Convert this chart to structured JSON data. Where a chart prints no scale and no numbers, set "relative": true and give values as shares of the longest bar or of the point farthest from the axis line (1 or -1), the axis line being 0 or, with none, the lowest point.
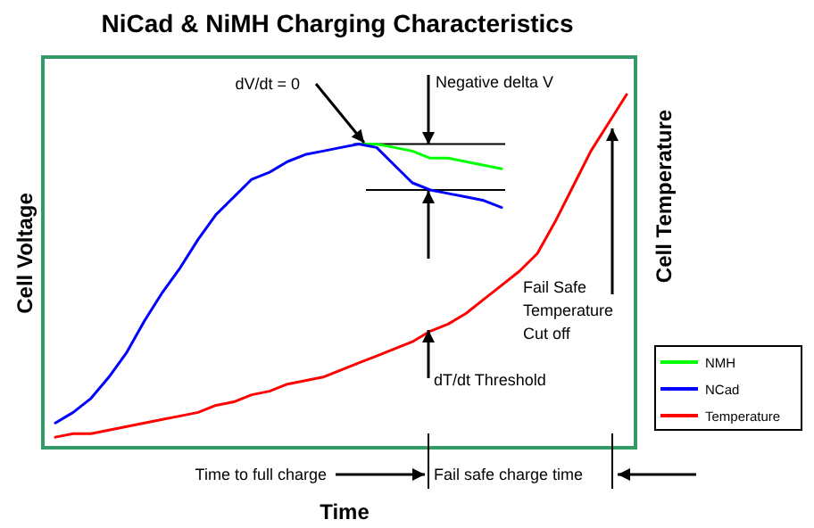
{
  "chart_data": {
    "type": "line",
    "relative": true,
    "title": "NiCad & NiMH Charging Characteristics",
    "xlabel": "Time",
    "ylabel": "Cell Voltage",
    "y2label": "Cell Temperature",
    "categories": [
      null,
      null,
      null,
      null,
      null,
      null,
      null,
      null,
      null,
      null,
      null,
      null,
      null,
      null,
      null,
      null,
      null,
      null,
      null,
      null,
      null,
      null,
      null,
      null,
      null,
      null,
      null,
      null,
      null,
      null,
      null,
      null,
      null
    ],
    "series": [
      {
        "name": "NMH",
        "color": "#00ff00",
        "values": [
          null,
          null,
          null,
          null,
          null,
          null,
          null,
          null,
          null,
          null,
          null,
          null,
          null,
          null,
          null,
          null,
          null,
          0.86,
          0.86,
          0.85,
          0.84,
          0.82,
          0.82,
          0.81,
          0.8,
          0.79,
          null,
          null,
          null,
          null,
          null,
          null,
          null
        ]
      },
      {
        "name": "NCad",
        "color": "#0000ff",
        "values": [
          0.07,
          0.1,
          0.14,
          0.2,
          0.27,
          0.36,
          0.44,
          0.51,
          0.59,
          0.66,
          0.71,
          0.76,
          0.78,
          0.81,
          0.83,
          0.84,
          0.85,
          0.86,
          0.85,
          0.8,
          0.75,
          0.73,
          0.72,
          0.71,
          0.7,
          0.68,
          null,
          null,
          null,
          null,
          null,
          null,
          null
        ]
      },
      {
        "name": "Temperature",
        "color": "#ff0000",
        "values": [
          0.03,
          0.04,
          0.04,
          0.05,
          0.06,
          0.07,
          0.08,
          0.09,
          0.1,
          0.12,
          0.13,
          0.15,
          0.16,
          0.18,
          0.19,
          0.2,
          0.22,
          0.24,
          0.26,
          0.28,
          0.3,
          0.33,
          0.35,
          0.38,
          0.42,
          0.46,
          0.5,
          0.55,
          0.64,
          0.74,
          0.84,
          0.92,
          1
        ]
      }
    ],
    "ref_lines": [
      {
        "axis": "y",
        "value": 0.86
      },
      {
        "axis": "y",
        "value": 0.73
      }
    ],
    "annotations": [
      "dV/dt = 0",
      "Negative delta V",
      "dT/dt Threshold",
      "Fail Safe Temperature Cut off",
      "Time to full charge",
      "Fail safe charge time"
    ],
    "legend": "bottom right",
    "grid": false
  }
}
